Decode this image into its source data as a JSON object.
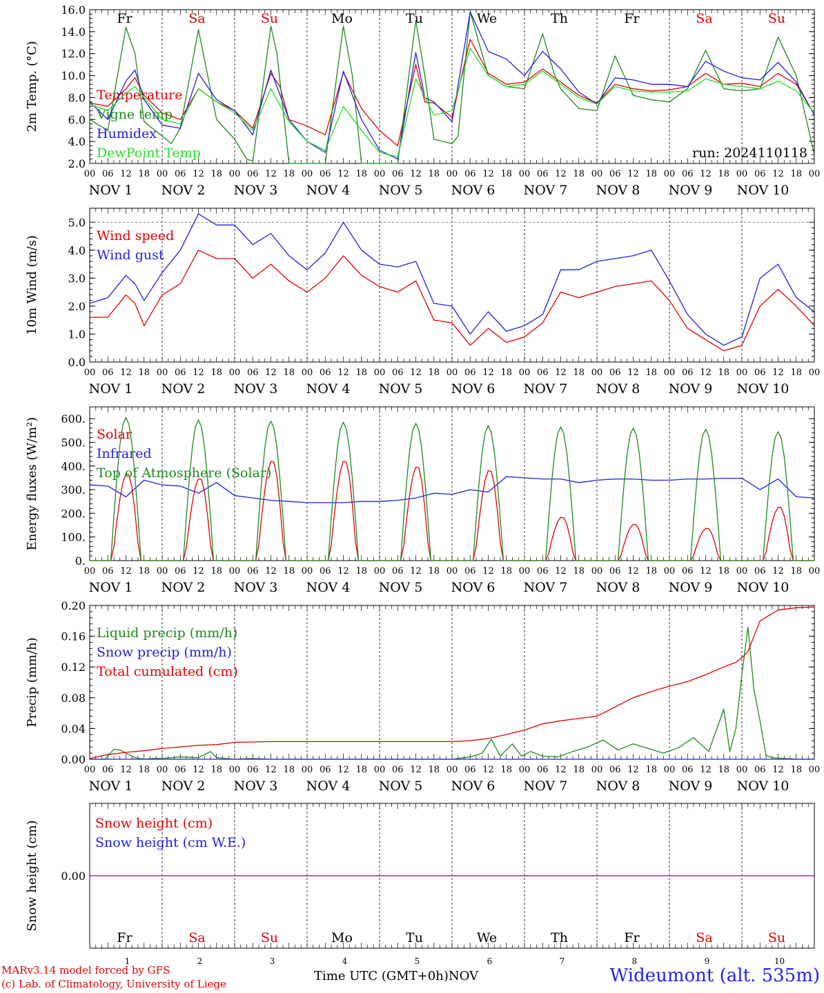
{
  "run_label": "run: 2024110118",
  "days": [
    "Fr",
    "Sa",
    "Su",
    "Mo",
    "Tu",
    "We",
    "Th",
    "Fr",
    "Sa",
    "Su"
  ],
  "day_colors": [
    "#000000",
    "#e00000",
    "#e00000",
    "#000000",
    "#000000",
    "#000000",
    "#000000",
    "#000000",
    "#e00000",
    "#e00000"
  ],
  "date_labels": [
    "NOV   1",
    "NOV   2",
    "NOV   3",
    "NOV   4",
    "NOV   5",
    "NOV   6",
    "NOV   7",
    "NOV   8",
    "NOV   9",
    "NOV 10"
  ],
  "hour_ticks": [
    "00",
    "06",
    "12",
    "18"
  ],
  "last_tick": "00",
  "bottom_numbers": [
    "1",
    "2",
    "3",
    "4",
    "5",
    "6",
    "7",
    "8",
    "9",
    "10"
  ],
  "footer": {
    "model_line": "MARv3.14 model forced by GFS",
    "lab_line": "(c) Lab. of Climatology, University of Liege",
    "time_label": "Time UTC (GMT+0h)",
    "month_label": "NOV",
    "station": "Wideumont (alt. 535m)"
  },
  "chart_data": [
    {
      "type": "line",
      "ylabel": "2m Temp. (°C)",
      "ylim": [
        2.0,
        16.0
      ],
      "yticks": [
        "2.0",
        "4.0",
        "6.0",
        "8.0",
        "10.0",
        "12.0",
        "14.0",
        "16.0"
      ],
      "x_unit": "hours since 2024-11-01 00 UTC",
      "xlim": [
        0,
        240
      ],
      "series": [
        {
          "name": "Temperature",
          "color": "#e00000",
          "x": [
            0,
            6,
            12,
            15,
            18,
            24,
            30,
            36,
            42,
            48,
            54,
            60,
            63,
            66,
            72,
            78,
            84,
            90,
            96,
            102,
            108,
            111,
            114,
            120,
            126,
            132,
            138,
            144,
            150,
            156,
            162,
            168,
            174,
            180,
            186,
            192,
            198,
            204,
            210,
            216,
            222,
            228,
            234,
            240
          ],
          "values": [
            7.5,
            7.2,
            8.8,
            9.8,
            8.2,
            6.6,
            6.0,
            8.8,
            7.6,
            6.8,
            5.2,
            10.2,
            9.0,
            6.0,
            5.4,
            4.6,
            10.3,
            7.0,
            5.0,
            3.6,
            11.0,
            7.6,
            7.5,
            6.2,
            13.3,
            10.2,
            9.2,
            9.4,
            10.6,
            9.4,
            8.2,
            7.5,
            9.2,
            8.8,
            8.6,
            8.7,
            9.0,
            10.2,
            9.2,
            9.3,
            9.0,
            10.2,
            9.2,
            6.5
          ]
        },
        {
          "name": "Vigne temp",
          "color": "#1a8a1a",
          "x": [
            0,
            6,
            12,
            15,
            18,
            24,
            27,
            30,
            36,
            42,
            48,
            52,
            54,
            60,
            62,
            66,
            72,
            78,
            84,
            87,
            90,
            96,
            102,
            108,
            111,
            114,
            120,
            122,
            126,
            132,
            138,
            144,
            150,
            154,
            156,
            162,
            168,
            174,
            180,
            186,
            192,
            198,
            204,
            210,
            216,
            222,
            228,
            234,
            240
          ],
          "values": [
            6.0,
            5.0,
            14.4,
            12.0,
            5.8,
            4.5,
            3.8,
            5.2,
            14.2,
            6.0,
            4.2,
            2.4,
            2.2,
            14.5,
            12.0,
            2.0,
            1.2,
            1.0,
            14.5,
            10.0,
            2.0,
            1.5,
            1.3,
            15.0,
            10.0,
            4.2,
            3.8,
            4.5,
            15.8,
            10.0,
            9.0,
            8.8,
            13.8,
            10.0,
            8.8,
            7.0,
            6.8,
            11.8,
            8.2,
            7.8,
            7.6,
            8.8,
            12.3,
            8.8,
            8.6,
            8.8,
            13.5,
            10.0,
            2.8
          ]
        },
        {
          "name": "Humidex",
          "color": "#1f1fdd",
          "x": [
            0,
            6,
            12,
            15,
            18,
            24,
            30,
            36,
            42,
            48,
            54,
            60,
            66,
            72,
            78,
            84,
            90,
            96,
            102,
            108,
            111,
            114,
            120,
            126,
            132,
            138,
            144,
            150,
            156,
            162,
            168,
            174,
            180,
            186,
            192,
            198,
            204,
            210,
            216,
            222,
            228,
            234,
            240
          ],
          "values": [
            7.6,
            6.0,
            9.5,
            10.5,
            7.8,
            5.5,
            5.2,
            10.2,
            7.8,
            6.8,
            4.6,
            10.5,
            6.0,
            4.0,
            3.0,
            10.4,
            6.0,
            3.2,
            2.4,
            12.1,
            8.0,
            7.6,
            5.8,
            15.8,
            12.2,
            11.5,
            10.0,
            12.2,
            10.6,
            8.5,
            7.4,
            9.8,
            9.6,
            9.2,
            9.2,
            9.0,
            11.3,
            10.4,
            9.8,
            9.6,
            11.2,
            9.4,
            6.4
          ]
        },
        {
          "name": "DewPoint Temp",
          "color": "#22dd22",
          "x": [
            0,
            6,
            12,
            15,
            18,
            24,
            30,
            36,
            42,
            48,
            54,
            60,
            66,
            72,
            78,
            84,
            90,
            96,
            102,
            108,
            114,
            120,
            126,
            132,
            138,
            144,
            150,
            156,
            162,
            168,
            174,
            180,
            186,
            192,
            198,
            204,
            210,
            216,
            222,
            228,
            234,
            240
          ],
          "values": [
            7.4,
            6.8,
            8.4,
            9.0,
            8.0,
            6.0,
            5.6,
            8.8,
            7.6,
            6.6,
            5.0,
            8.8,
            5.8,
            4.0,
            3.2,
            7.2,
            5.0,
            3.0,
            2.6,
            9.7,
            6.4,
            6.8,
            12.5,
            10.0,
            9.0,
            9.2,
            10.4,
            9.2,
            8.0,
            7.4,
            9.0,
            8.6,
            8.5,
            8.5,
            8.6,
            9.7,
            9.2,
            9.0,
            8.8,
            9.5,
            8.6,
            6.6
          ]
        }
      ]
    },
    {
      "type": "line",
      "ylabel": "10m Wind (m/s)",
      "ylim": [
        0.0,
        5.5
      ],
      "yticks": [
        "0.0",
        "1.0",
        "2.0",
        "3.0",
        "4.0",
        "5.0"
      ],
      "dashed_ref": 5.0,
      "x_unit": "hours since 2024-11-01 00 UTC",
      "xlim": [
        0,
        240
      ],
      "series": [
        {
          "name": "Wind speed",
          "color": "#e00000",
          "x": [
            0,
            6,
            12,
            15,
            18,
            24,
            30,
            36,
            42,
            48,
            54,
            60,
            66,
            72,
            78,
            84,
            90,
            96,
            102,
            108,
            114,
            120,
            126,
            132,
            138,
            144,
            150,
            156,
            162,
            168,
            174,
            180,
            186,
            192,
            198,
            204,
            210,
            216,
            222,
            228,
            234,
            240
          ],
          "values": [
            1.6,
            1.6,
            2.4,
            2.1,
            1.3,
            2.4,
            2.8,
            4.0,
            3.7,
            3.7,
            3.0,
            3.5,
            2.9,
            2.5,
            3.0,
            3.8,
            3.1,
            2.7,
            2.5,
            2.9,
            1.5,
            1.4,
            0.6,
            1.2,
            0.7,
            0.9,
            1.4,
            2.5,
            2.3,
            2.5,
            2.7,
            2.8,
            2.9,
            2.2,
            1.2,
            0.8,
            0.4,
            0.6,
            2.0,
            2.6,
            2.0,
            1.3
          ]
        },
        {
          "name": "Wind gust",
          "color": "#1f1fdd",
          "x": [
            0,
            6,
            12,
            15,
            18,
            24,
            30,
            36,
            42,
            48,
            54,
            60,
            66,
            72,
            78,
            84,
            90,
            96,
            102,
            108,
            114,
            120,
            126,
            132,
            138,
            144,
            150,
            156,
            162,
            168,
            174,
            180,
            186,
            192,
            198,
            204,
            210,
            216,
            222,
            228,
            234,
            240
          ],
          "values": [
            2.1,
            2.3,
            3.1,
            2.8,
            2.2,
            3.2,
            4.0,
            5.3,
            4.9,
            4.9,
            4.2,
            4.6,
            3.8,
            3.3,
            3.9,
            5.0,
            4.0,
            3.5,
            3.4,
            3.6,
            2.1,
            2.0,
            1.0,
            1.8,
            1.1,
            1.3,
            1.7,
            3.3,
            3.3,
            3.6,
            3.7,
            3.8,
            4.0,
            2.9,
            1.7,
            1.0,
            0.6,
            0.9,
            3.0,
            3.5,
            2.3,
            1.8
          ]
        }
      ]
    },
    {
      "type": "line",
      "ylabel": "Energy fluxes (W/m²)",
      "ylim": [
        0,
        650
      ],
      "yticks": [
        "0.",
        "100.",
        "200.",
        "300.",
        "400.",
        "500.",
        "600."
      ],
      "x_unit": "hours since 2024-11-01 00 UTC",
      "xlim": [
        0,
        240
      ],
      "series": [
        {
          "name": "Solar",
          "color": "#e00000",
          "peaks": [
            370,
            350,
            425,
            425,
            400,
            385,
            185,
            155,
            138,
            228
          ]
        },
        {
          "name": "Infrared",
          "color": "#1f1fdd",
          "x": [
            0,
            6,
            12,
            18,
            24,
            30,
            36,
            42,
            48,
            54,
            60,
            66,
            72,
            78,
            84,
            90,
            96,
            102,
            108,
            114,
            120,
            126,
            132,
            138,
            144,
            150,
            156,
            162,
            168,
            174,
            180,
            186,
            192,
            198,
            204,
            210,
            216,
            222,
            228,
            234,
            240
          ],
          "values": [
            320,
            315,
            270,
            340,
            320,
            315,
            285,
            330,
            275,
            265,
            255,
            250,
            245,
            245,
            245,
            250,
            250,
            255,
            265,
            285,
            280,
            300,
            290,
            355,
            350,
            345,
            345,
            330,
            340,
            345,
            345,
            340,
            340,
            345,
            345,
            348,
            348,
            300,
            345,
            270,
            265
          ]
        },
        {
          "name": "Top of Atmosphere (Solar)",
          "color": "#1a8a1a",
          "peaks": [
            605,
            595,
            590,
            585,
            580,
            570,
            565,
            560,
            555,
            545
          ]
        }
      ]
    },
    {
      "type": "line",
      "ylabel": "Precip (mm/h)",
      "ylim": [
        0.0,
        0.2
      ],
      "yticks": [
        "0.00",
        "0.04",
        "0.08",
        "0.12",
        "0.16",
        "0.20"
      ],
      "x_unit": "hours since 2024-11-01 00 UTC",
      "xlim": [
        0,
        240
      ],
      "series": [
        {
          "name": "Liquid precip (mm/h)",
          "color": "#1a8a1a",
          "x": [
            0,
            5,
            8,
            10,
            12,
            15,
            18,
            21,
            24,
            30,
            36,
            40,
            42,
            48,
            54,
            60,
            66,
            72,
            90,
            102,
            120,
            126,
            130,
            133,
            136,
            140,
            143,
            146,
            150,
            155,
            160,
            165,
            170,
            175,
            180,
            185,
            190,
            195,
            200,
            205,
            210,
            212,
            214,
            216,
            218,
            220,
            222,
            224,
            226,
            230,
            235,
            240
          ],
          "values": [
            0.0,
            0.0,
            0.013,
            0.012,
            0.008,
            0.002,
            0.0,
            0.001,
            0.001,
            0.003,
            0.002,
            0.01,
            0.002,
            0.0,
            0.001,
            0.0,
            0.0,
            0.0,
            0.0,
            0.0,
            0.0,
            0.003,
            0.008,
            0.026,
            0.004,
            0.02,
            0.004,
            0.01,
            0.004,
            0.003,
            0.01,
            0.016,
            0.025,
            0.012,
            0.02,
            0.014,
            0.008,
            0.015,
            0.028,
            0.01,
            0.065,
            0.01,
            0.04,
            0.11,
            0.172,
            0.09,
            0.05,
            0.005,
            0.002,
            0.001,
            0.0,
            0.0
          ]
        },
        {
          "name": "Snow precip (mm/h)",
          "color": "#1f1fdd",
          "x": [
            0,
            240
          ],
          "values": [
            0.0,
            0.0
          ]
        },
        {
          "name": "Total cumulated (cm)",
          "color": "#e00000",
          "x": [
            0,
            6,
            12,
            18,
            24,
            30,
            36,
            42,
            48,
            60,
            72,
            96,
            120,
            126,
            132,
            138,
            144,
            150,
            156,
            162,
            168,
            174,
            180,
            186,
            192,
            198,
            204,
            210,
            214,
            216,
            218,
            220,
            222,
            228,
            234,
            240
          ],
          "values": [
            0.001,
            0.006,
            0.009,
            0.011,
            0.014,
            0.016,
            0.018,
            0.019,
            0.022,
            0.023,
            0.023,
            0.023,
            0.023,
            0.024,
            0.027,
            0.032,
            0.038,
            0.046,
            0.05,
            0.053,
            0.056,
            0.068,
            0.08,
            0.088,
            0.095,
            0.101,
            0.11,
            0.12,
            0.126,
            0.132,
            0.14,
            0.16,
            0.18,
            0.194,
            0.197,
            0.198
          ]
        }
      ]
    },
    {
      "type": "line",
      "ylabel": "Snow height (cm)",
      "yticks": [
        "0.00"
      ],
      "x_unit": "hours since 2024-11-01 00 UTC",
      "xlim": [
        0,
        240
      ],
      "series": [
        {
          "name": "Snow height (cm)",
          "color": "#e00000",
          "x": [
            0,
            240
          ],
          "values": [
            0.0,
            0.0
          ]
        },
        {
          "name": "Snow height (cm W.E.)",
          "color": "#1f1fdd",
          "x": [
            0,
            240
          ],
          "values": [
            0.0,
            0.0
          ]
        }
      ]
    }
  ]
}
